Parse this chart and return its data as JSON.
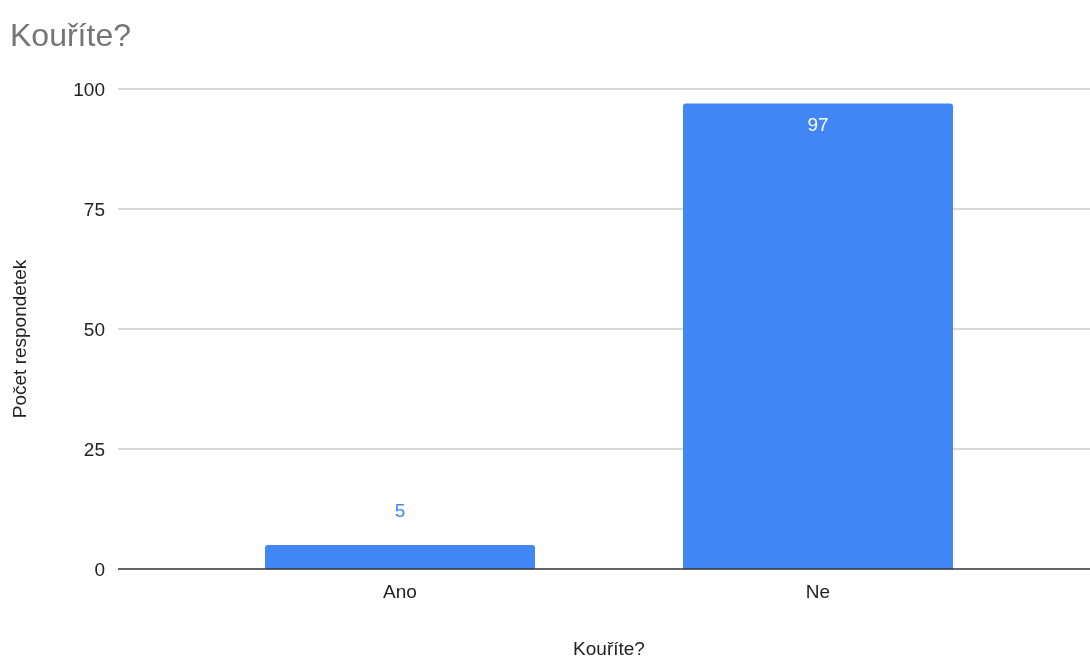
{
  "chart_data": {
    "type": "bar",
    "title": "Kouříte?",
    "xlabel": "Kouříte?",
    "ylabel": "Počet respondetek",
    "categories": [
      "Ano",
      "Ne"
    ],
    "values": [
      5,
      97
    ],
    "color": "#4285f4",
    "ylim": [
      0,
      100
    ],
    "yticks": [
      0,
      25,
      50,
      75,
      100
    ],
    "grid": "y",
    "data_labels": true
  }
}
